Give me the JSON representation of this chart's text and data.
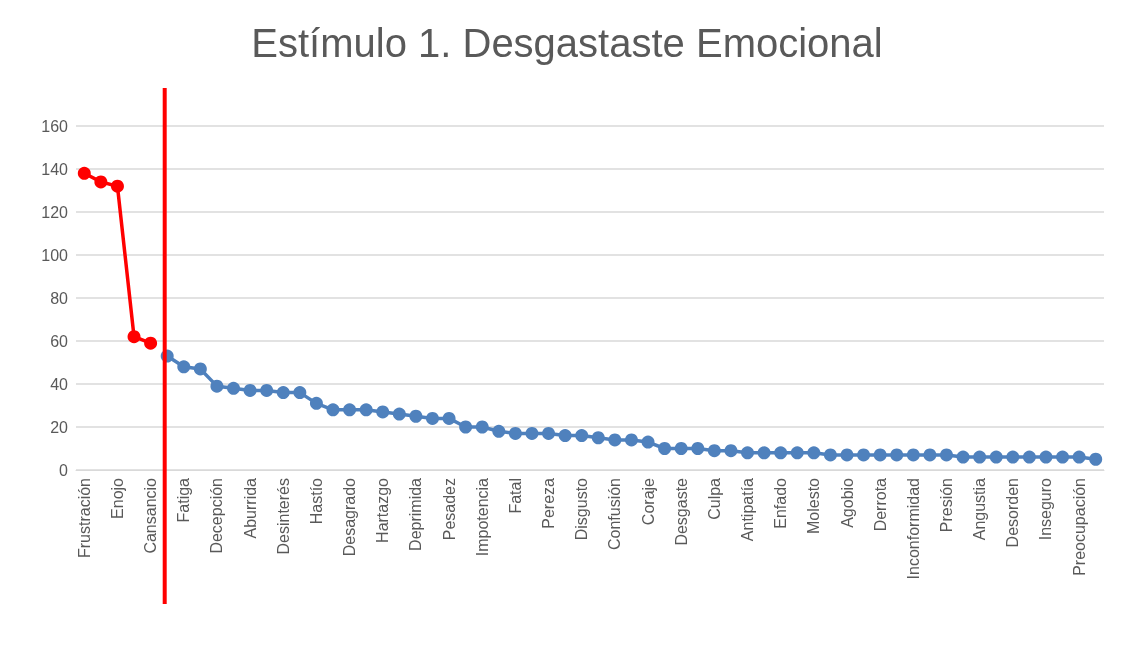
{
  "chart_data": {
    "type": "line",
    "title": "Estímulo 1. Desgastaste Emocional",
    "categories": [
      "Frustración",
      null,
      "Enojo",
      null,
      "Cansancio",
      null,
      "Fatiga",
      null,
      "Decepción",
      null,
      "Aburrida",
      null,
      "Desinterés",
      null,
      "Hastío",
      null,
      "Desagrado",
      null,
      "Hartazgo",
      null,
      "Deprimida",
      null,
      "Pesadez",
      null,
      "Impotencia",
      null,
      "Fatal",
      null,
      "Pereza",
      null,
      "Disgusto",
      null,
      "Confusión",
      null,
      "Coraje",
      null,
      "Desgaste",
      null,
      "Culpa",
      null,
      "Antipatía",
      null,
      "Enfado",
      null,
      "Molesto",
      null,
      "Agobio",
      null,
      "Derrota",
      null,
      "Inconformidad",
      null,
      "Presión",
      null,
      "Angustia",
      null,
      "Desorden",
      null,
      "Inseguro",
      null,
      "Preocupación",
      null
    ],
    "series": [
      {
        "color": "#4f81bd",
        "values": [
          null,
          null,
          null,
          null,
          null,
          53,
          48,
          47,
          39,
          38,
          37,
          37,
          36,
          36,
          31,
          28,
          28,
          28,
          27,
          26,
          25,
          24,
          24,
          20,
          20,
          18,
          17,
          17,
          17,
          16,
          16,
          15,
          14,
          14,
          13,
          10,
          10,
          10,
          9,
          9,
          8,
          8,
          8,
          8,
          8,
          7,
          7,
          7,
          7,
          7,
          7,
          7,
          7,
          6,
          6,
          6,
          6,
          6,
          6,
          6,
          6,
          5
        ]
      },
      {
        "color": "#ff0000",
        "values": [
          138,
          134,
          132,
          62,
          59,
          null,
          null,
          null,
          null,
          null,
          null,
          null,
          null,
          null,
          null,
          null,
          null,
          null,
          null,
          null,
          null,
          null,
          null,
          null,
          null,
          null,
          null,
          null,
          null,
          null,
          null,
          null,
          null,
          null,
          null,
          null,
          null,
          null,
          null,
          null,
          null,
          null,
          null,
          null,
          null,
          null,
          null,
          null,
          null,
          null,
          null,
          null,
          null,
          null,
          null,
          null,
          null,
          null,
          null,
          null,
          null,
          null
        ]
      }
    ],
    "ylim": [
      0,
      160
    ],
    "yticks": [
      0,
      20,
      40,
      60,
      80,
      100,
      120,
      140,
      160
    ],
    "grid": "y",
    "marker": "circle",
    "line_style": "solid"
  }
}
